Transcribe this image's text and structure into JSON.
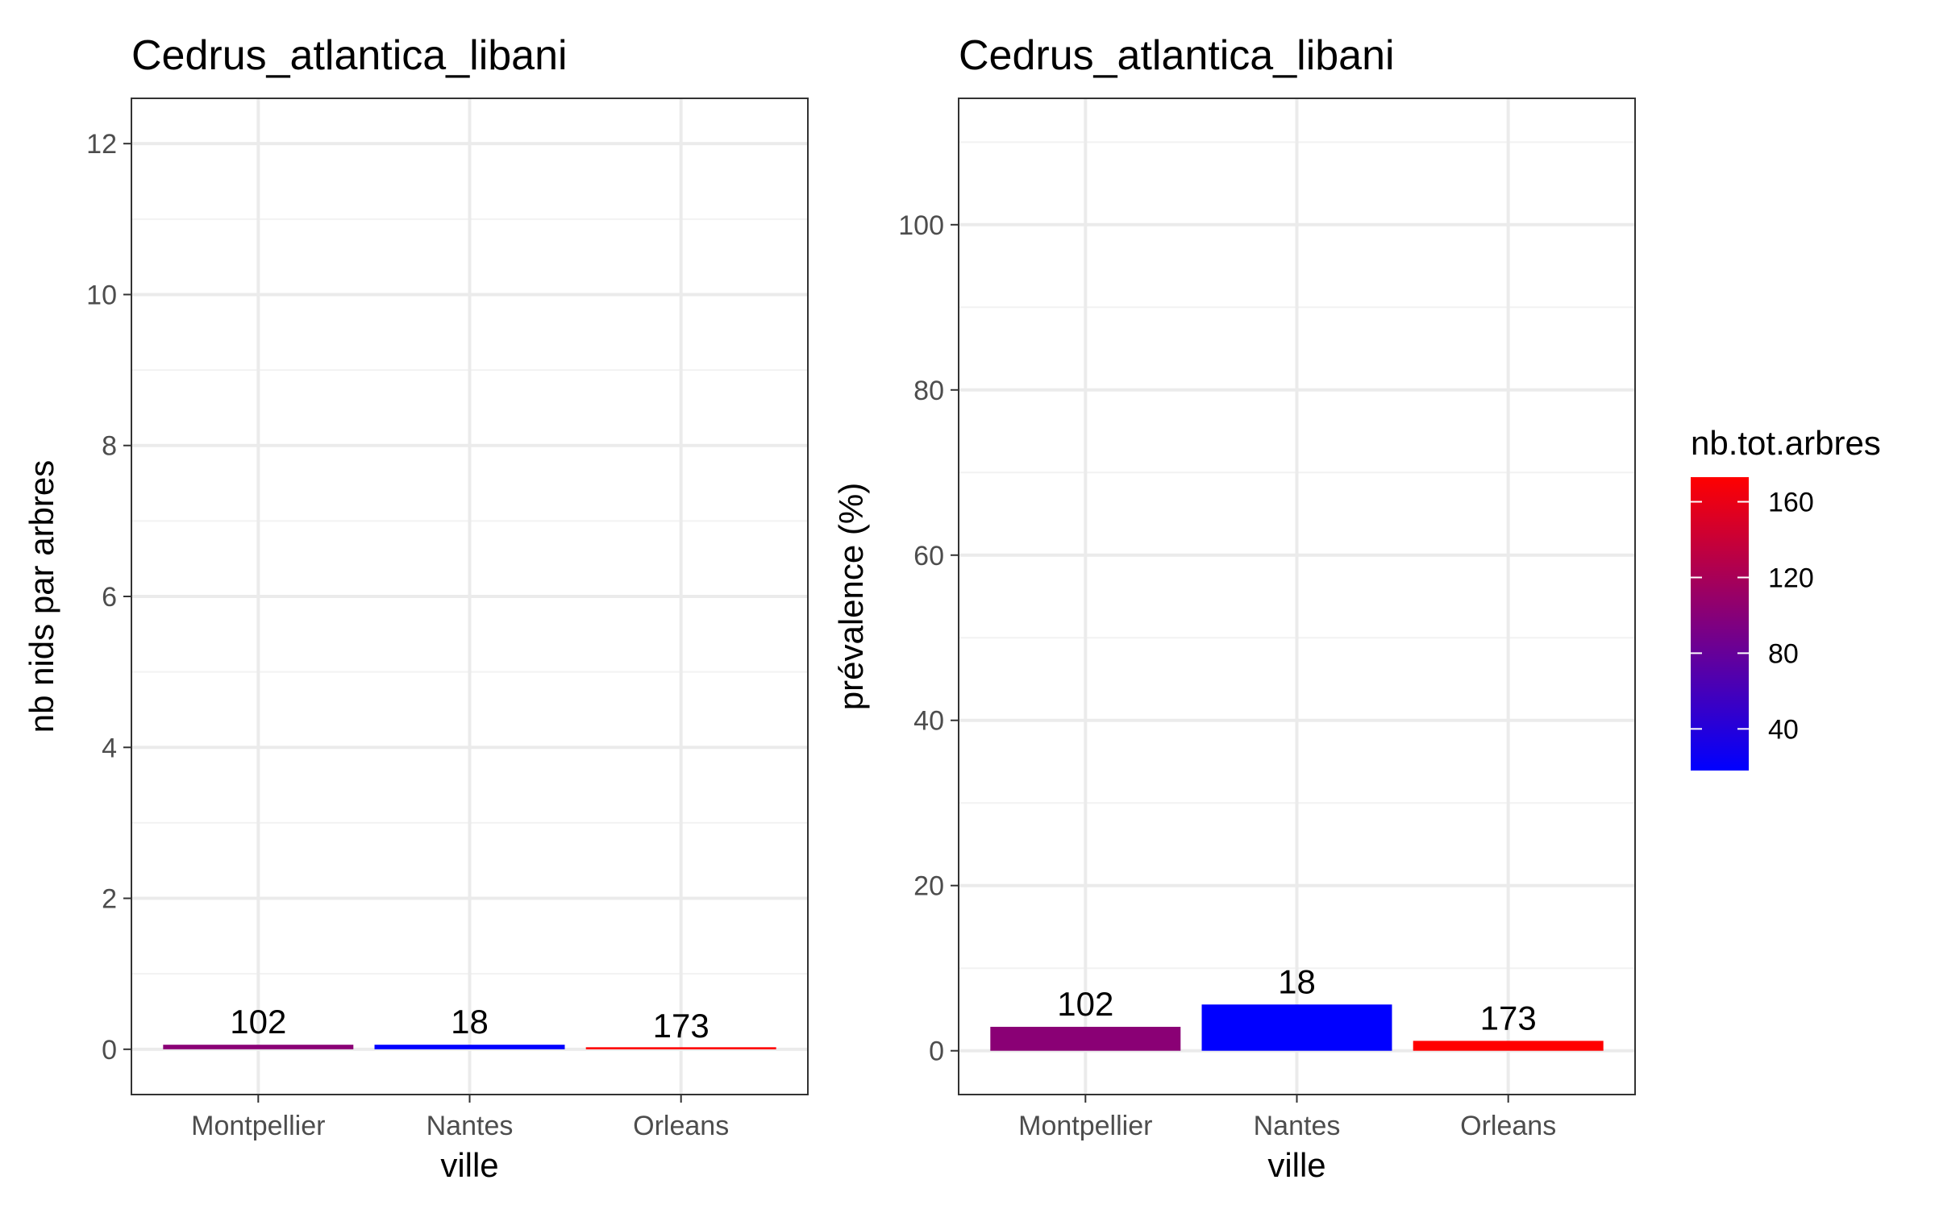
{
  "legend": {
    "title": "nb.tot.arbres",
    "breaks": [
      40,
      80,
      120,
      160
    ],
    "range": [
      18,
      173
    ],
    "color_low": "#0000ff",
    "color_high": "#ff0000"
  },
  "chart_data": [
    {
      "type": "bar",
      "title": "Cedrus_atlantica_libani",
      "xlabel": "ville",
      "ylabel": "nb nids par arbres",
      "categories": [
        "Montpellier",
        "Nantes",
        "Orleans"
      ],
      "values": [
        0.06,
        0.06,
        0.01
      ],
      "labels": [
        "102",
        "18",
        "173"
      ],
      "fill_values": [
        102,
        18,
        173
      ],
      "ylim": [
        -0.6,
        12.6
      ],
      "yticks": [
        0,
        2,
        4,
        6,
        8,
        10,
        12
      ],
      "grid": true
    },
    {
      "type": "bar",
      "title": "Cedrus_atlantica_libani",
      "xlabel": "ville",
      "ylabel": "prévalence (%)",
      "categories": [
        "Montpellier",
        "Nantes",
        "Orleans"
      ],
      "values": [
        2.9,
        5.6,
        1.2
      ],
      "labels": [
        "102",
        "18",
        "173"
      ],
      "fill_values": [
        102,
        18,
        173
      ],
      "ylim": [
        -5.3,
        115.3
      ],
      "yticks": [
        0,
        20,
        40,
        60,
        80,
        100
      ],
      "grid": true
    }
  ]
}
